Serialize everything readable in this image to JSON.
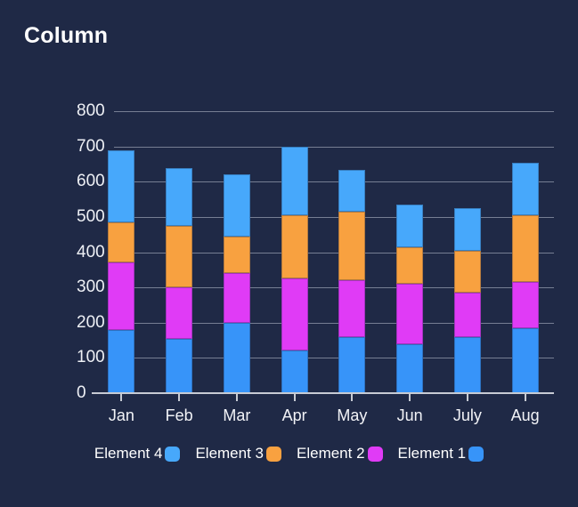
{
  "colors": {
    "background": "#1f2946",
    "grid_line": "#bec5d4",
    "axis_line": "#c7cbd4",
    "text": "#f2f3f7",
    "title": "#ffffff"
  },
  "chart_data": {
    "type": "bar",
    "stacked": true,
    "title": "Column",
    "categories": [
      "Jan",
      "Feb",
      "Mar",
      "Apr",
      "May",
      "Jun",
      "July",
      "Aug"
    ],
    "series": [
      {
        "name": "Element 1",
        "color": "#3794f9",
        "values": [
          180,
          155,
          200,
          120,
          160,
          140,
          160,
          185
        ]
      },
      {
        "name": "Element 2",
        "color": "#e03bf6",
        "values": [
          190,
          145,
          140,
          205,
          160,
          170,
          125,
          130
        ]
      },
      {
        "name": "Element 3",
        "color": "#f8a140",
        "values": [
          115,
          175,
          105,
          180,
          195,
          105,
          120,
          190
        ]
      },
      {
        "name": "Element 4",
        "color": "#47a8fb",
        "values": [
          205,
          165,
          175,
          195,
          120,
          120,
          120,
          150
        ]
      }
    ],
    "totals": [
      690,
      640,
      620,
      700,
      635,
      535,
      525,
      655
    ],
    "ylim": [
      0,
      800
    ],
    "ytick_step": 100,
    "ytick_labels": [
      "0",
      "100",
      "200",
      "300",
      "400",
      "500",
      "600",
      "700",
      "800"
    ],
    "grid": true,
    "legend_position": "bottom",
    "legend_order": [
      "Element 4",
      "Element 3",
      "Element 2",
      "Element 1"
    ]
  }
}
